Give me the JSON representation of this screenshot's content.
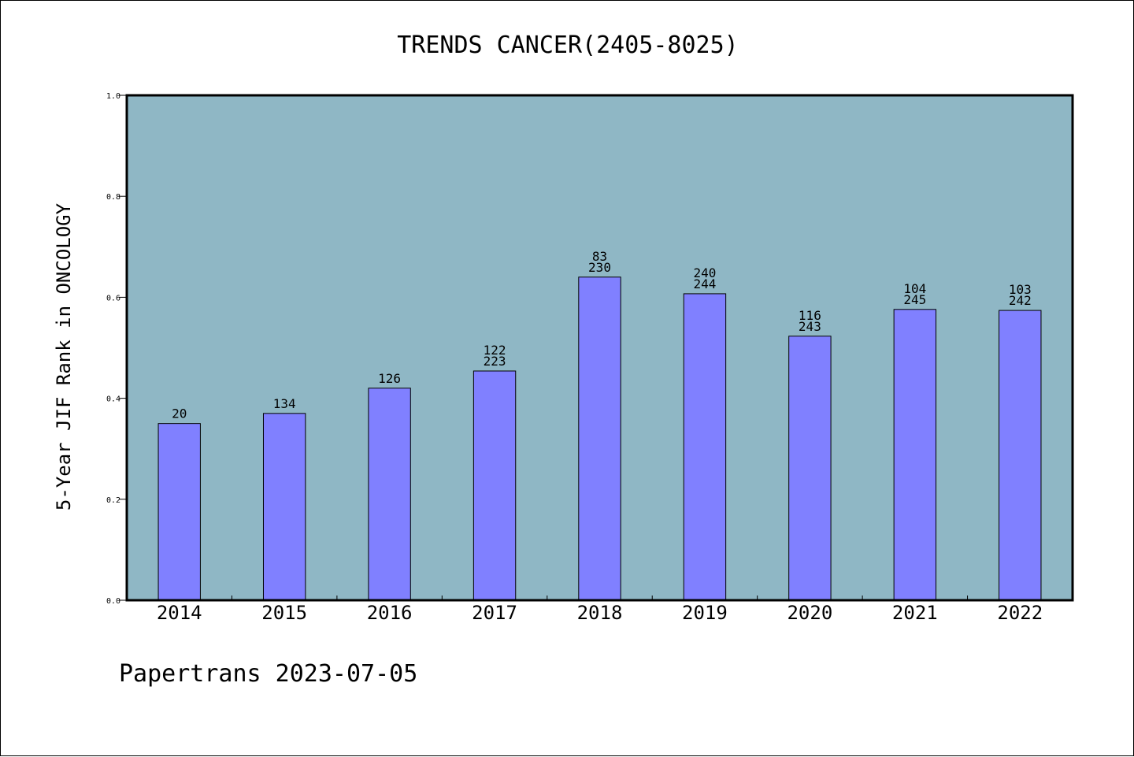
{
  "chart_data": {
    "type": "bar",
    "title": "TRENDS CANCER(2405-8025)",
    "xlabel": "",
    "ylabel": "5-Year JIF Rank in ONCOLOGY",
    "ylim": [
      0,
      1
    ],
    "yticks": [
      "0.0",
      "0.2",
      "0.4",
      "0.6",
      "0.8",
      "1.0"
    ],
    "categories": [
      "2014",
      "2015",
      "2016",
      "2017",
      "2018",
      "2019",
      "2020",
      "2021",
      "2022"
    ],
    "values": [
      0.35,
      0.37,
      0.42,
      0.454,
      0.64,
      0.607,
      0.523,
      0.576,
      0.574
    ],
    "labels": [
      [
        "20"
      ],
      [
        "134"
      ],
      [
        "126"
      ],
      [
        "122",
        "223"
      ],
      [
        "83",
        "230"
      ],
      [
        "240",
        "244"
      ],
      [
        "116",
        "243"
      ],
      [
        "104",
        "245"
      ],
      [
        "103",
        "242"
      ]
    ],
    "grid": false,
    "colors": {
      "plot_background": "#8fb7c5",
      "bar_fill": "#8080ff",
      "bar_stroke": "#000000"
    }
  },
  "footer": {
    "text": "Papertrans 2023-07-05"
  }
}
